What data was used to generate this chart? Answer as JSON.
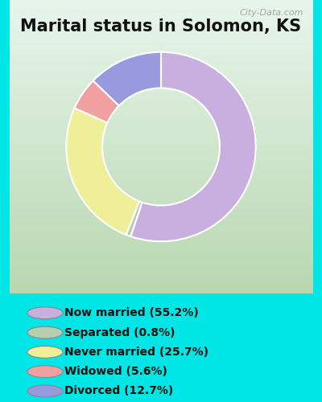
{
  "title": "Marital status in Solomon, KS",
  "title_fontsize": 15,
  "title_fontweight": "bold",
  "slices": [
    55.2,
    0.8,
    25.7,
    5.6,
    12.7
  ],
  "labels": [
    "Now married (55.2%)",
    "Separated (0.8%)",
    "Never married (25.7%)",
    "Widowed (5.6%)",
    "Divorced (12.7%)"
  ],
  "colors": [
    "#c9aee0",
    "#b5cfb0",
    "#f0ef99",
    "#f0a0a0",
    "#9999dd"
  ],
  "startangle": 90,
  "background_color": "#00e5e5",
  "chart_bg_top": "#e8f5ec",
  "chart_bg_bottom": "#b8d8b0",
  "watermark": "City-Data.com",
  "legend_fontsize": 10,
  "outer_r": 1.0,
  "inner_r": 0.62
}
